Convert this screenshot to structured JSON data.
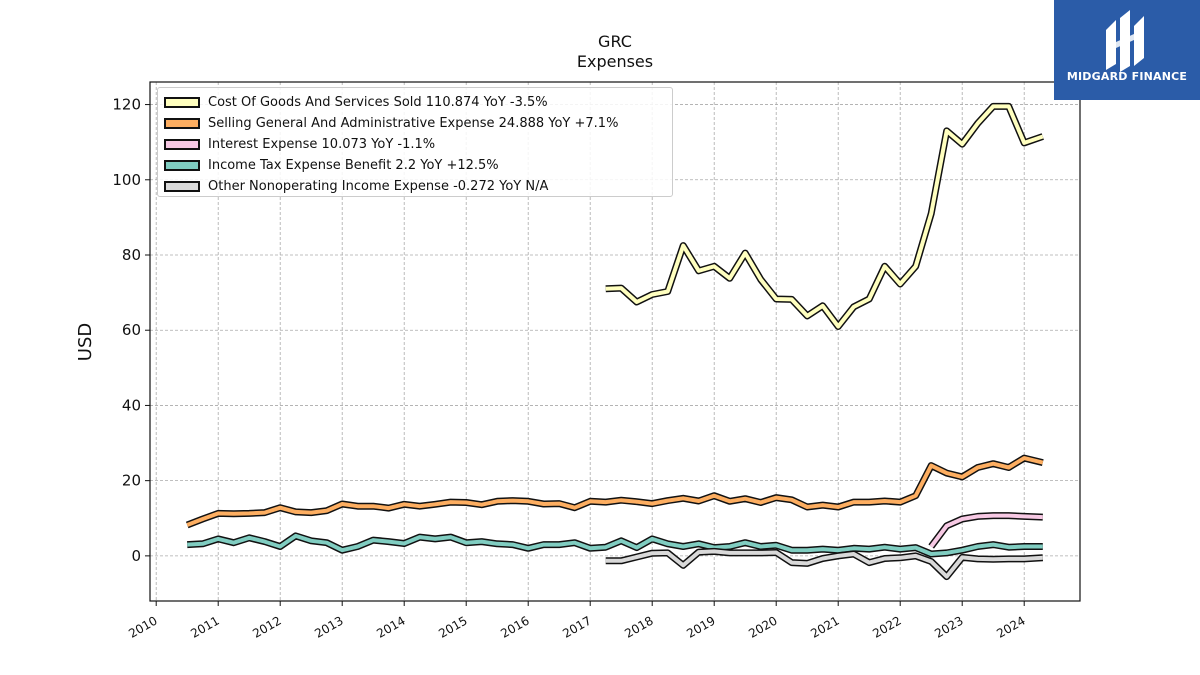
{
  "logo": {
    "text": "MIDGARD FINANCE",
    "icon": "midgard-logo-icon",
    "background": "#2b5ca8"
  },
  "chart_data": {
    "type": "line",
    "title": "GRC",
    "subtitle": "Expenses",
    "ylabel": "USD",
    "xlabel": "",
    "xlim": [
      2009.9,
      2024.9
    ],
    "ylim": [
      -12,
      126
    ],
    "x_ticks": [
      "2010",
      "2011",
      "2012",
      "2013",
      "2014",
      "2015",
      "2016",
      "2017",
      "2018",
      "2019",
      "2020",
      "2021",
      "2022",
      "2023",
      "2024"
    ],
    "y_ticks": [
      "0",
      "20",
      "40",
      "60",
      "80",
      "100",
      "120"
    ],
    "grid": true,
    "legend_position": "top-left",
    "series": [
      {
        "name": "Cost Of Goods And Services Sold  110.874 YoY -3.5%",
        "color": "#ffffbf",
        "points": [
          [
            2017.25,
            71
          ],
          [
            2017.5,
            71.2
          ],
          [
            2017.75,
            67.5
          ],
          [
            2018.0,
            69.5
          ],
          [
            2018.25,
            70.3
          ],
          [
            2018.5,
            82.5
          ],
          [
            2018.75,
            75.8
          ],
          [
            2019.0,
            77
          ],
          [
            2019.25,
            73.8
          ],
          [
            2019.5,
            80.5
          ],
          [
            2019.75,
            73.5
          ],
          [
            2020.0,
            68.3
          ],
          [
            2020.25,
            68.2
          ],
          [
            2020.5,
            63.8
          ],
          [
            2020.75,
            66.5
          ],
          [
            2021.0,
            61
          ],
          [
            2021.25,
            66.2
          ],
          [
            2021.5,
            68.3
          ],
          [
            2021.75,
            77
          ],
          [
            2022.0,
            72.3
          ],
          [
            2022.25,
            77
          ],
          [
            2022.5,
            91
          ],
          [
            2022.75,
            113
          ],
          [
            2023.0,
            109.5
          ],
          [
            2023.25,
            115
          ],
          [
            2023.5,
            119.5
          ],
          [
            2023.75,
            119.5
          ],
          [
            2024.0,
            109.8
          ],
          [
            2024.3,
            111.5
          ]
        ]
      },
      {
        "name": "Selling General And Administrative Expense  24.888 YoY +7.1%",
        "color": "#fdae61",
        "points": [
          [
            2010.5,
            8.2
          ],
          [
            2010.75,
            9.8
          ],
          [
            2011.0,
            11.3
          ],
          [
            2011.25,
            11.2
          ],
          [
            2011.5,
            11.3
          ],
          [
            2011.75,
            11.5
          ],
          [
            2012.0,
            12.8
          ],
          [
            2012.25,
            11.7
          ],
          [
            2012.5,
            11.5
          ],
          [
            2012.75,
            12
          ],
          [
            2013.0,
            13.8
          ],
          [
            2013.25,
            13.2
          ],
          [
            2013.5,
            13.2
          ],
          [
            2013.75,
            12.7
          ],
          [
            2014.0,
            13.7
          ],
          [
            2014.25,
            13.2
          ],
          [
            2014.5,
            13.7
          ],
          [
            2014.75,
            14.3
          ],
          [
            2015.0,
            14.2
          ],
          [
            2015.25,
            13.6
          ],
          [
            2015.5,
            14.5
          ],
          [
            2015.75,
            14.7
          ],
          [
            2016.0,
            14.5
          ],
          [
            2016.25,
            13.8
          ],
          [
            2016.5,
            13.9
          ],
          [
            2016.75,
            12.8
          ],
          [
            2017.0,
            14.5
          ],
          [
            2017.25,
            14.3
          ],
          [
            2017.5,
            14.8
          ],
          [
            2017.75,
            14.4
          ],
          [
            2018.0,
            13.9
          ],
          [
            2018.25,
            14.7
          ],
          [
            2018.5,
            15.3
          ],
          [
            2018.75,
            14.6
          ],
          [
            2019.0,
            16
          ],
          [
            2019.25,
            14.5
          ],
          [
            2019.5,
            15.2
          ],
          [
            2019.75,
            14.2
          ],
          [
            2020.0,
            15.5
          ],
          [
            2020.25,
            14.9
          ],
          [
            2020.5,
            13
          ],
          [
            2020.75,
            13.5
          ],
          [
            2021.0,
            13
          ],
          [
            2021.25,
            14.3
          ],
          [
            2021.5,
            14.3
          ],
          [
            2021.75,
            14.6
          ],
          [
            2022.0,
            14.3
          ],
          [
            2022.25,
            16
          ],
          [
            2022.5,
            24
          ],
          [
            2022.75,
            22
          ],
          [
            2023.0,
            21
          ],
          [
            2023.25,
            23.5
          ],
          [
            2023.5,
            24.5
          ],
          [
            2023.75,
            23.5
          ],
          [
            2024.0,
            26
          ],
          [
            2024.3,
            24.8
          ]
        ]
      },
      {
        "name": "Interest Expense  10.073 YoY -1.1%",
        "color": "#f7c9e4",
        "points": [
          [
            2022.5,
            2.5
          ],
          [
            2022.75,
            8
          ],
          [
            2023.0,
            9.8
          ],
          [
            2023.25,
            10.5
          ],
          [
            2023.5,
            10.7
          ],
          [
            2023.75,
            10.7
          ],
          [
            2024.0,
            10.5
          ],
          [
            2024.3,
            10.3
          ]
        ]
      },
      {
        "name": "Income Tax Expense Benefit  2.2 YoY +12.5%",
        "color": "#80cdc1",
        "points": [
          [
            2010.5,
            3
          ],
          [
            2010.75,
            3.2
          ],
          [
            2011.0,
            4.5
          ],
          [
            2011.25,
            3.5
          ],
          [
            2011.5,
            4.8
          ],
          [
            2011.75,
            3.8
          ],
          [
            2012.0,
            2.5
          ],
          [
            2012.25,
            5.3
          ],
          [
            2012.5,
            4
          ],
          [
            2012.75,
            3.5
          ],
          [
            2013.0,
            1.5
          ],
          [
            2013.25,
            2.5
          ],
          [
            2013.5,
            4.2
          ],
          [
            2013.75,
            3.8
          ],
          [
            2014.0,
            3.3
          ],
          [
            2014.25,
            5
          ],
          [
            2014.5,
            4.5
          ],
          [
            2014.75,
            5
          ],
          [
            2015.0,
            3.5
          ],
          [
            2015.25,
            3.8
          ],
          [
            2015.5,
            3.2
          ],
          [
            2015.75,
            3
          ],
          [
            2016.0,
            2
          ],
          [
            2016.25,
            3
          ],
          [
            2016.5,
            3
          ],
          [
            2016.75,
            3.5
          ],
          [
            2017.0,
            2
          ],
          [
            2017.25,
            2.3
          ],
          [
            2017.5,
            4
          ],
          [
            2017.75,
            2.2
          ],
          [
            2018.0,
            4.5
          ],
          [
            2018.25,
            3.2
          ],
          [
            2018.5,
            2.5
          ],
          [
            2018.75,
            3.2
          ],
          [
            2019.0,
            2.2
          ],
          [
            2019.25,
            2.5
          ],
          [
            2019.5,
            3.5
          ],
          [
            2019.75,
            2.5
          ],
          [
            2020.0,
            2.8
          ],
          [
            2020.25,
            1.5
          ],
          [
            2020.5,
            1.5
          ],
          [
            2020.75,
            1.8
          ],
          [
            2021.0,
            1.5
          ],
          [
            2021.25,
            2
          ],
          [
            2021.5,
            1.8
          ],
          [
            2021.75,
            2.3
          ],
          [
            2022.0,
            1.8
          ],
          [
            2022.25,
            2.2
          ],
          [
            2022.5,
            0.5
          ],
          [
            2022.75,
            0.8
          ],
          [
            2023.0,
            1.5
          ],
          [
            2023.25,
            2.5
          ],
          [
            2023.5,
            3
          ],
          [
            2023.75,
            2.3
          ],
          [
            2024.0,
            2.5
          ],
          [
            2024.3,
            2.5
          ]
        ]
      },
      {
        "name": "Other Nonoperating Income Expense  -0.272 YoY N/A",
        "color": "#d9d9d9",
        "points": [
          [
            2017.25,
            -1.3
          ],
          [
            2017.5,
            -1.3
          ],
          [
            2017.75,
            -0.3
          ],
          [
            2018.0,
            0.7
          ],
          [
            2018.25,
            0.8
          ],
          [
            2018.5,
            -2.5
          ],
          [
            2018.75,
            1
          ],
          [
            2019.0,
            1.2
          ],
          [
            2019.25,
            0.8
          ],
          [
            2019.5,
            0.8
          ],
          [
            2019.75,
            0.8
          ],
          [
            2020.0,
            0.9
          ],
          [
            2020.25,
            -1.8
          ],
          [
            2020.5,
            -2
          ],
          [
            2020.75,
            -0.7
          ],
          [
            2021.0,
            0
          ],
          [
            2021.25,
            0.5
          ],
          [
            2021.5,
            -1.8
          ],
          [
            2021.75,
            -0.7
          ],
          [
            2022.0,
            -0.5
          ],
          [
            2022.25,
            0
          ],
          [
            2022.5,
            -1.5
          ],
          [
            2022.75,
            -5.5
          ],
          [
            2023.0,
            -0.4
          ],
          [
            2023.25,
            -0.8
          ],
          [
            2023.5,
            -0.9
          ],
          [
            2023.75,
            -0.8
          ],
          [
            2024.0,
            -0.8
          ],
          [
            2024.3,
            -0.5
          ]
        ]
      }
    ]
  }
}
